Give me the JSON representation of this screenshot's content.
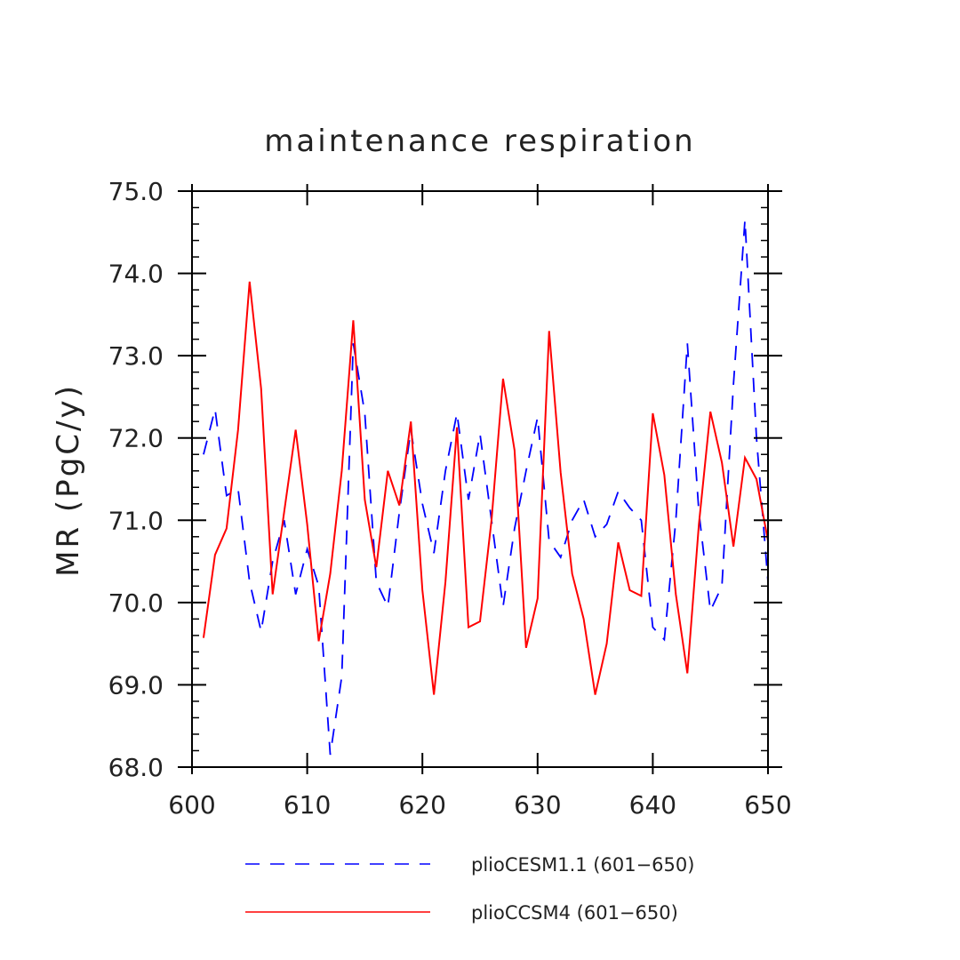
{
  "chart_data": {
    "type": "line",
    "title": "maintenance respiration",
    "xlabel": "",
    "ylabel": "MR  (PgC/y)",
    "xlim": [
      600,
      650
    ],
    "ylim": [
      68.0,
      75.0
    ],
    "x_ticks": [
      600,
      610,
      620,
      630,
      640,
      650
    ],
    "x_tick_labels": [
      "600",
      "610",
      "620",
      "630",
      "640",
      "650"
    ],
    "y_ticks": [
      68.0,
      69.0,
      70.0,
      71.0,
      72.0,
      73.0,
      74.0,
      75.0
    ],
    "y_tick_labels": [
      "68.0",
      "69.0",
      "70.0",
      "71.0",
      "72.0",
      "73.0",
      "74.0",
      "75.0"
    ],
    "x": [
      601,
      602,
      603,
      604,
      605,
      606,
      607,
      608,
      609,
      610,
      611,
      612,
      613,
      614,
      615,
      616,
      617,
      618,
      619,
      620,
      621,
      622,
      623,
      624,
      625,
      626,
      627,
      628,
      629,
      630,
      631,
      632,
      633,
      634,
      635,
      636,
      637,
      638,
      639,
      640,
      641,
      642,
      643,
      644,
      645,
      646,
      647,
      648,
      649,
      650
    ],
    "series": [
      {
        "name": "plioCESM1.1 (601−650)",
        "color": "#0000ff",
        "dash": "dashed",
        "values": [
          71.8,
          72.35,
          71.3,
          71.38,
          70.25,
          69.65,
          70.5,
          71.0,
          70.1,
          70.65,
          70.2,
          68.15,
          69.1,
          73.15,
          72.3,
          70.25,
          69.95,
          71.1,
          72.1,
          71.2,
          70.6,
          71.6,
          72.3,
          71.25,
          72.05,
          71.0,
          69.95,
          70.9,
          71.6,
          72.25,
          70.75,
          70.55,
          71.0,
          71.25,
          70.8,
          70.95,
          71.35,
          71.15,
          71.0,
          69.7,
          69.55,
          71.0,
          73.15,
          71.1,
          69.9,
          70.2,
          72.65,
          74.65,
          72.0,
          70.25
        ]
      },
      {
        "name": "plioCCSM4 (601−650)",
        "color": "#ff0000",
        "dash": "solid",
        "values": [
          69.57,
          70.58,
          70.9,
          72.1,
          73.9,
          72.6,
          70.1,
          71.1,
          72.1,
          70.95,
          69.53,
          70.35,
          71.6,
          73.43,
          71.25,
          70.43,
          71.6,
          71.18,
          72.2,
          70.15,
          68.88,
          70.25,
          72.13,
          69.7,
          69.77,
          71.0,
          72.72,
          71.85,
          69.45,
          70.05,
          73.3,
          71.58,
          70.35,
          69.8,
          68.88,
          69.5,
          70.73,
          70.15,
          70.08,
          72.3,
          71.55,
          70.1,
          69.14,
          70.95,
          72.32,
          71.7,
          70.68,
          71.76,
          71.5,
          70.75
        ]
      }
    ],
    "legend": {
      "placement": "bottom"
    },
    "grid": false
  }
}
